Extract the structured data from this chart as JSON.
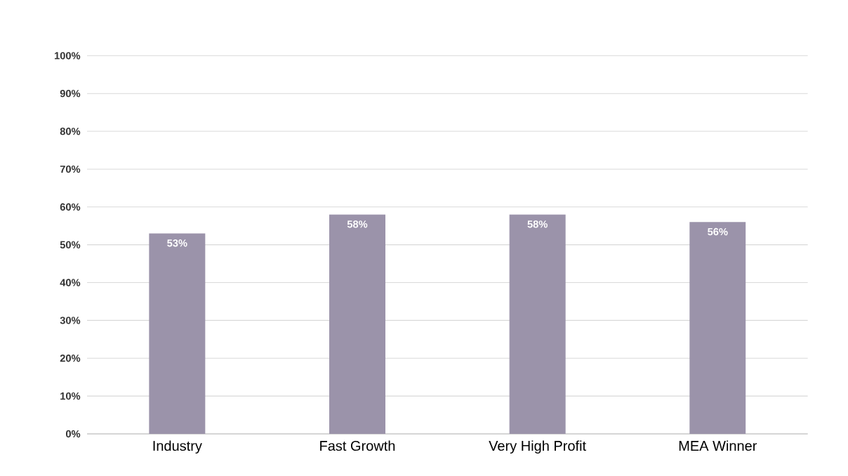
{
  "chart_data": {
    "type": "bar",
    "categories": [
      "Industry",
      "Fast Growth",
      "Very High Profit",
      "MEA Winner"
    ],
    "values": [
      53,
      58,
      58,
      56
    ],
    "value_labels": [
      "53%",
      "58%",
      "58%",
      "56%"
    ],
    "color": "#9b93aa",
    "ylim": [
      0,
      100
    ],
    "yticks": [
      {
        "value": 0,
        "label": "0%"
      },
      {
        "value": 10,
        "label": "10%"
      },
      {
        "value": 20,
        "label": "20%"
      },
      {
        "value": 30,
        "label": "30%"
      },
      {
        "value": 40,
        "label": "40%"
      },
      {
        "value": 50,
        "label": "50%"
      },
      {
        "value": 60,
        "label": "60%"
      },
      {
        "value": 70,
        "label": "70%"
      },
      {
        "value": 80,
        "label": "80%"
      },
      {
        "value": 90,
        "label": "90%"
      },
      {
        "value": 100,
        "label": "100%"
      }
    ],
    "grid": "y"
  }
}
